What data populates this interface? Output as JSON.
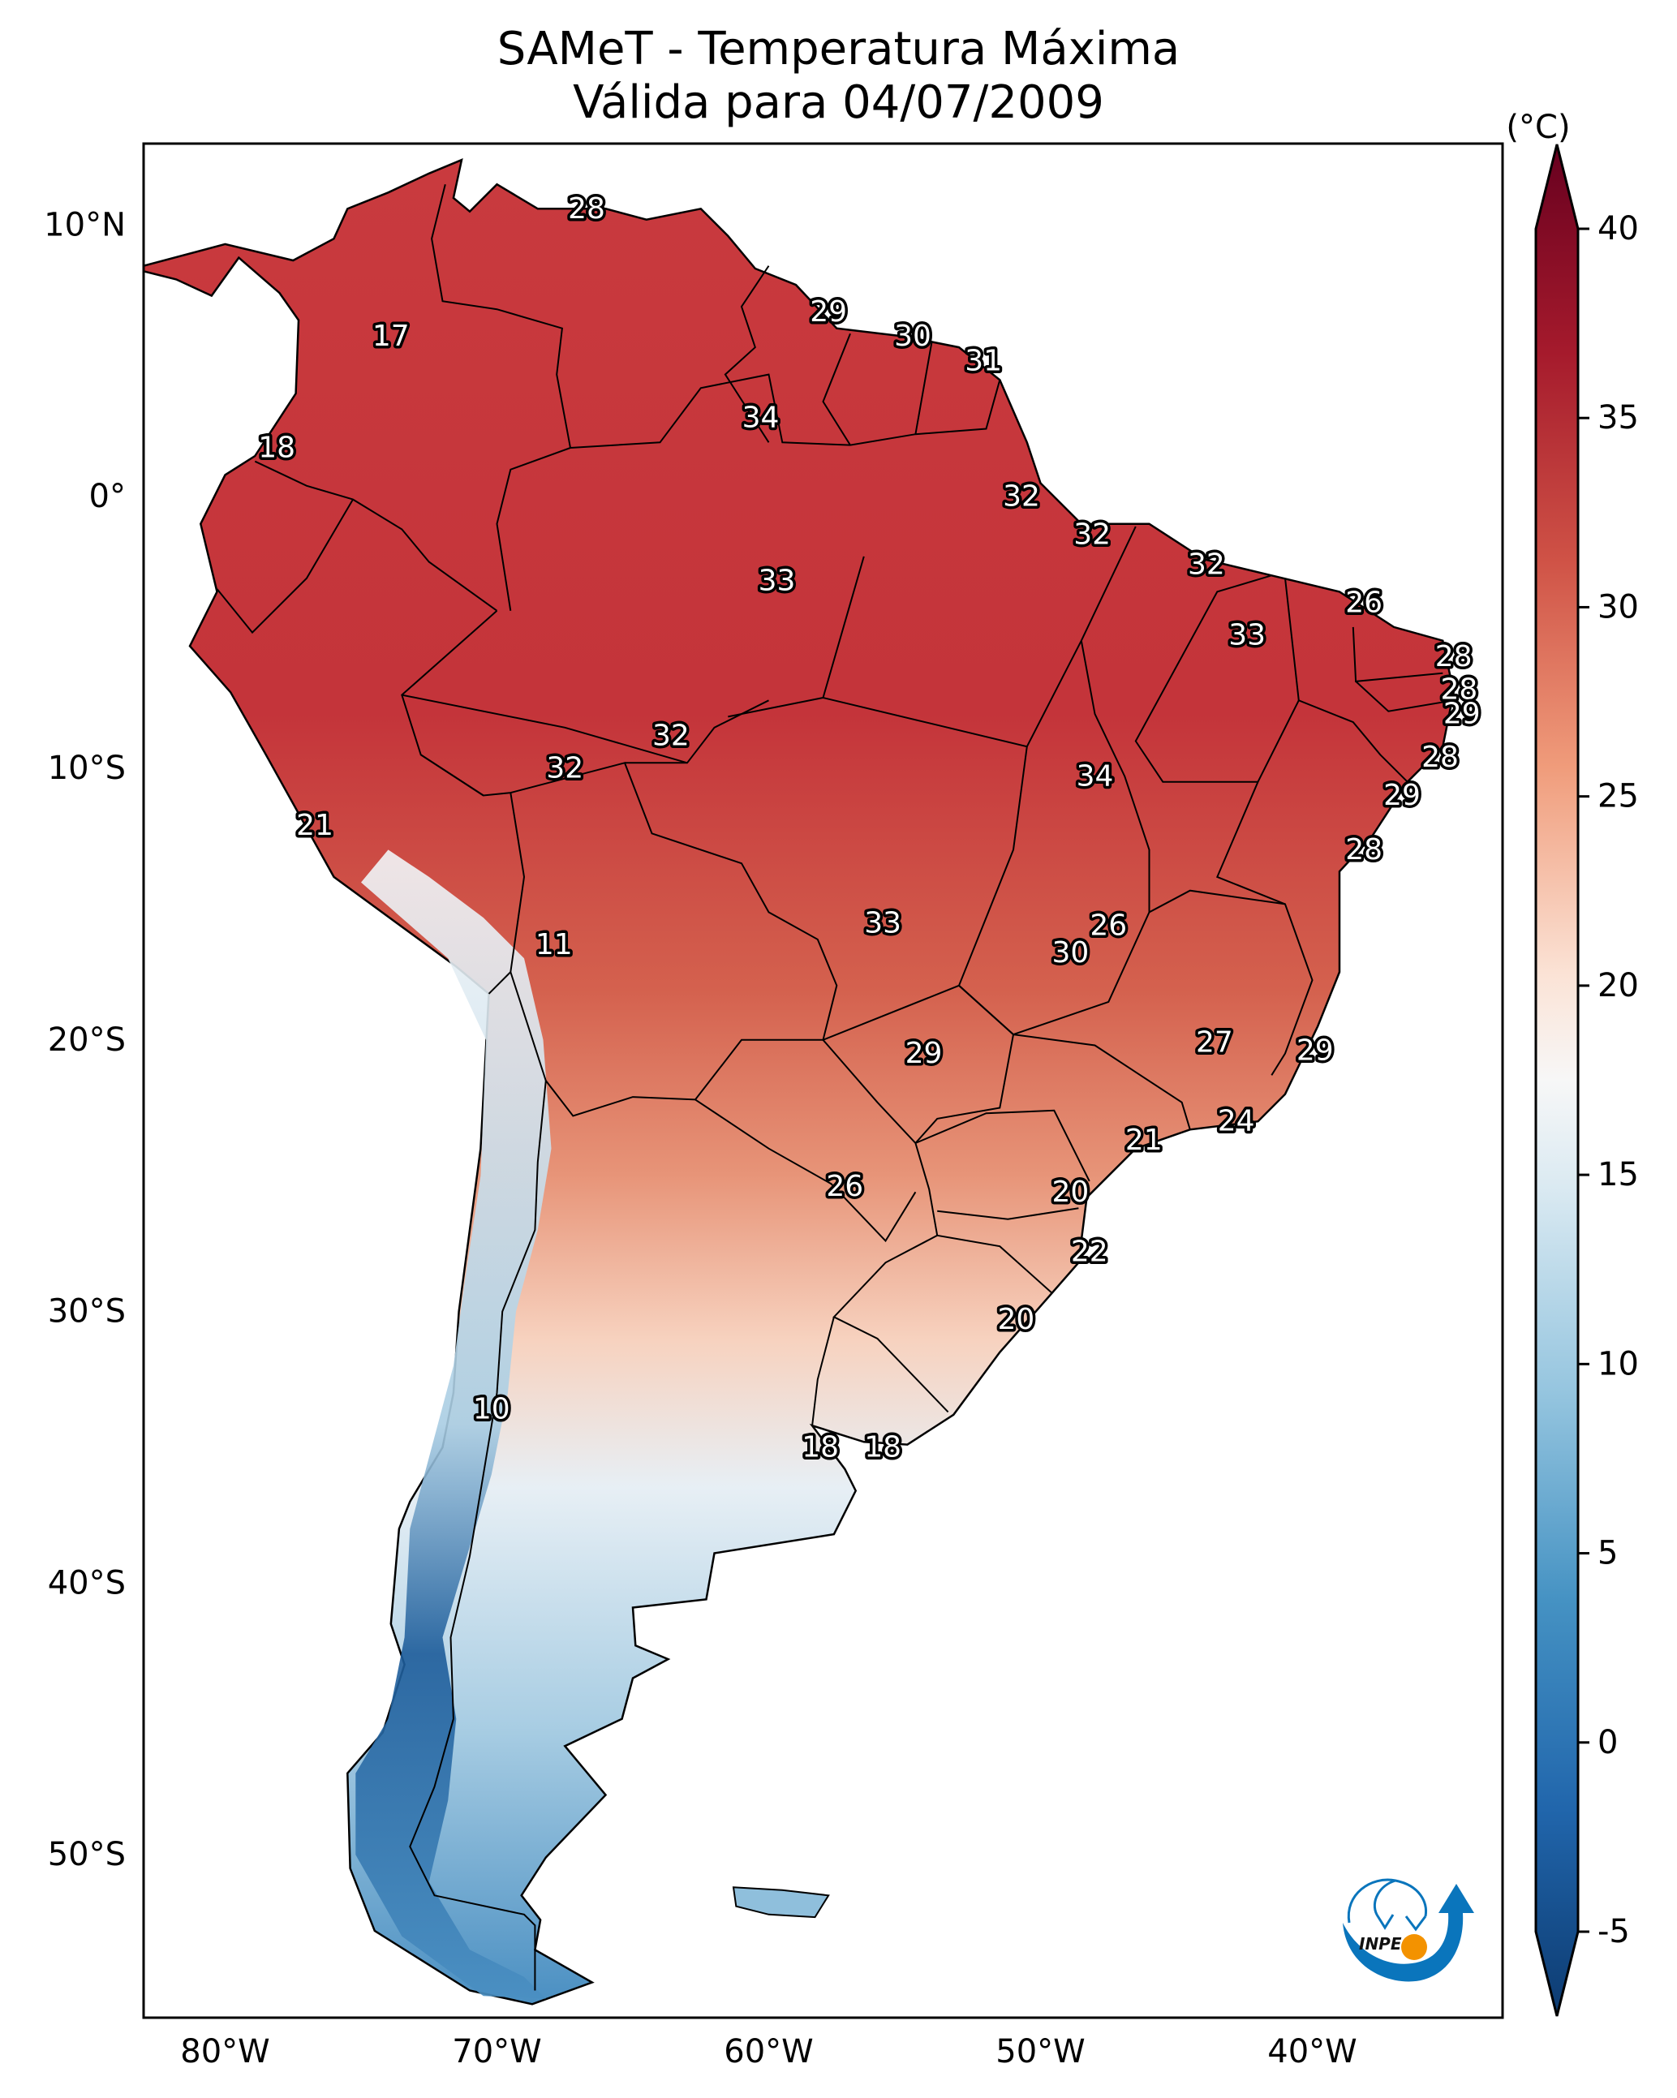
{
  "title": {
    "line1": "SAMeT - Temperatura Máxima",
    "line2": "Válida para 04/07/2009"
  },
  "logo": {
    "text": "INPE",
    "colors": {
      "blue": "#0a75bc",
      "orange": "#f39200"
    }
  },
  "chart_data": {
    "type": "heatmap",
    "title": "SAMeT - Temperatura Máxima",
    "subtitle": "Válida para 04/07/2009",
    "variable": "Maximum temperature",
    "units_label": "(°C)",
    "extent": {
      "lon": [
        -83,
        -33
      ],
      "lat": [
        -56,
        13
      ]
    },
    "grid": false,
    "x_ticks": [
      {
        "value": -80,
        "label": "80°W"
      },
      {
        "value": -70,
        "label": "70°W"
      },
      {
        "value": -60,
        "label": "60°W"
      },
      {
        "value": -50,
        "label": "50°W"
      },
      {
        "value": -40,
        "label": "40°W"
      }
    ],
    "y_ticks": [
      {
        "value": 10,
        "label": "10°N"
      },
      {
        "value": 0,
        "label": "0°"
      },
      {
        "value": -10,
        "label": "10°S"
      },
      {
        "value": -20,
        "label": "20°S"
      },
      {
        "value": -30,
        "label": "30°S"
      },
      {
        "value": -40,
        "label": "40°S"
      },
      {
        "value": -50,
        "label": "50°S"
      }
    ],
    "colorbar": {
      "colormap": "RdBu_r",
      "range": [
        -5,
        40
      ],
      "extend": "both",
      "placement": "right",
      "ticks": [
        {
          "value": 40,
          "label": "40"
        },
        {
          "value": 35,
          "label": "35"
        },
        {
          "value": 30,
          "label": "30"
        },
        {
          "value": 25,
          "label": "25"
        },
        {
          "value": 20,
          "label": "20"
        },
        {
          "value": 15,
          "label": "15"
        },
        {
          "value": 10,
          "label": "10"
        },
        {
          "value": 5,
          "label": "5"
        },
        {
          "value": 0,
          "label": "0"
        },
        {
          "value": -5,
          "label": "-5"
        }
      ]
    },
    "labels": [
      {
        "value": 28,
        "lon": -66.7,
        "lat": 10.6
      },
      {
        "value": 17,
        "lon": -73.9,
        "lat": 5.9
      },
      {
        "value": 18,
        "lon": -78.1,
        "lat": 1.8
      },
      {
        "value": 29,
        "lon": -57.8,
        "lat": 6.8
      },
      {
        "value": 30,
        "lon": -54.7,
        "lat": 5.9
      },
      {
        "value": 31,
        "lon": -52.1,
        "lat": 5.0
      },
      {
        "value": 34,
        "lon": -60.3,
        "lat": 2.9
      },
      {
        "value": 32,
        "lon": -50.7,
        "lat": 0.0
      },
      {
        "value": 32,
        "lon": -48.1,
        "lat": -1.4
      },
      {
        "value": 32,
        "lon": -43.9,
        "lat": -2.5
      },
      {
        "value": 33,
        "lon": -59.7,
        "lat": -3.1
      },
      {
        "value": 26,
        "lon": -38.1,
        "lat": -3.9
      },
      {
        "value": 33,
        "lon": -42.4,
        "lat": -5.1
      },
      {
        "value": 28,
        "lon": -34.8,
        "lat": -5.9
      },
      {
        "value": 28,
        "lon": -34.6,
        "lat": -7.1
      },
      {
        "value": 29,
        "lon": -34.5,
        "lat": -8.0
      },
      {
        "value": 32,
        "lon": -63.6,
        "lat": -8.8
      },
      {
        "value": 32,
        "lon": -67.5,
        "lat": -10.0
      },
      {
        "value": 34,
        "lon": -48.0,
        "lat": -10.3
      },
      {
        "value": 28,
        "lon": -35.3,
        "lat": -9.6
      },
      {
        "value": 29,
        "lon": -36.7,
        "lat": -11.0
      },
      {
        "value": 21,
        "lon": -76.7,
        "lat": -12.1
      },
      {
        "value": 28,
        "lon": -38.1,
        "lat": -13.0
      },
      {
        "value": 33,
        "lon": -55.8,
        "lat": -15.7
      },
      {
        "value": 26,
        "lon": -47.5,
        "lat": -15.8
      },
      {
        "value": 30,
        "lon": -48.9,
        "lat": -16.8
      },
      {
        "value": 11,
        "lon": -67.9,
        "lat": -16.5
      },
      {
        "value": 27,
        "lon": -43.6,
        "lat": -20.1
      },
      {
        "value": 29,
        "lon": -39.9,
        "lat": -20.4
      },
      {
        "value": 29,
        "lon": -54.3,
        "lat": -20.5
      },
      {
        "value": 24,
        "lon": -42.8,
        "lat": -23.0
      },
      {
        "value": 21,
        "lon": -46.2,
        "lat": -23.7
      },
      {
        "value": 26,
        "lon": -57.2,
        "lat": -25.4
      },
      {
        "value": 20,
        "lon": -48.9,
        "lat": -25.6
      },
      {
        "value": 22,
        "lon": -48.2,
        "lat": -27.8
      },
      {
        "value": 20,
        "lon": -50.9,
        "lat": -30.3
      },
      {
        "value": 10,
        "lon": -70.2,
        "lat": -33.6
      },
      {
        "value": 18,
        "lon": -58.1,
        "lat": -35.0
      },
      {
        "value": 18,
        "lon": -55.8,
        "lat": -35.0
      }
    ]
  }
}
